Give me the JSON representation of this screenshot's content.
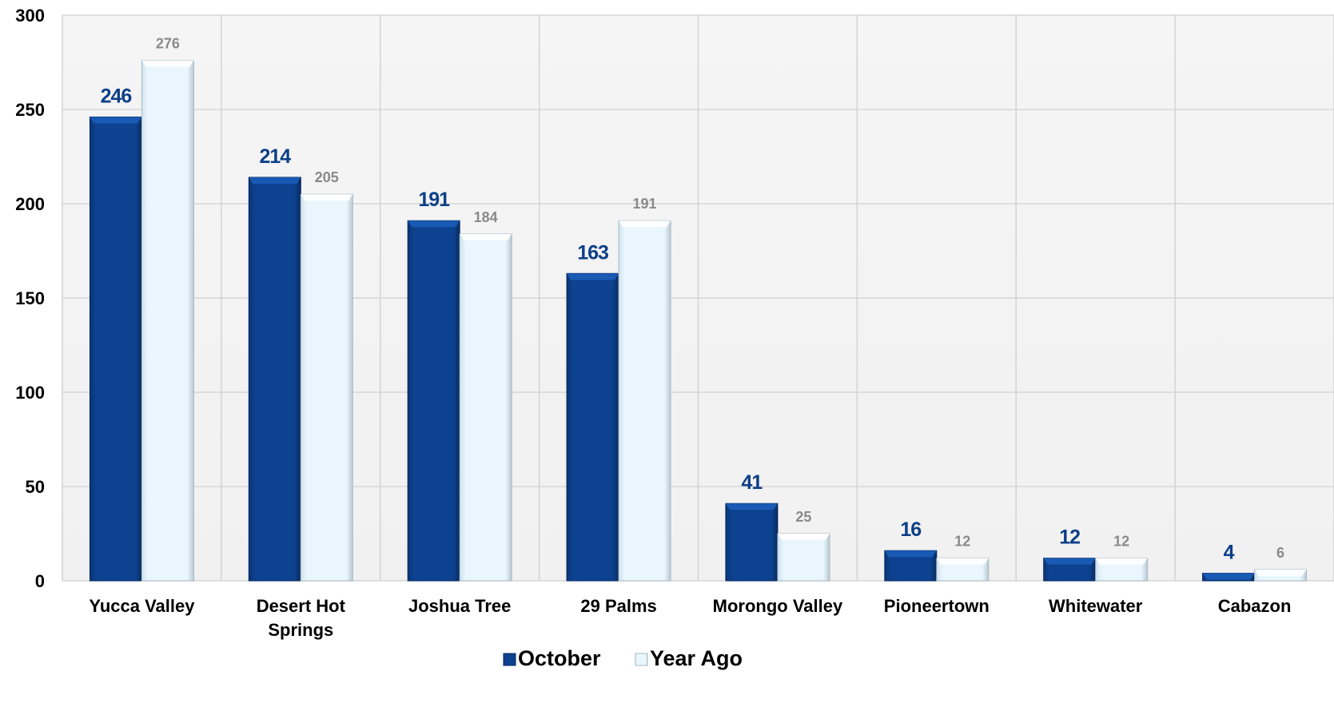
{
  "chart_data": {
    "type": "bar",
    "title": "",
    "xlabel": "",
    "ylabel": "",
    "ylim": [
      0,
      300
    ],
    "yticks": [
      0,
      50,
      100,
      150,
      200,
      250,
      300
    ],
    "grid": true,
    "legend_position": "bottom",
    "categories": [
      [
        "Yucca Valley"
      ],
      [
        "Desert Hot",
        "Springs"
      ],
      [
        "Joshua Tree"
      ],
      [
        "29 Palms"
      ],
      [
        "Morongo Valley"
      ],
      [
        "Pioneertown"
      ],
      [
        "Whitewater"
      ],
      [
        "Cabazon"
      ]
    ],
    "series": [
      {
        "name": "October",
        "values": [
          246,
          214,
          191,
          163,
          41,
          16,
          12,
          4
        ],
        "color": "#0d3f87"
      },
      {
        "name": "Year Ago",
        "values": [
          276,
          205,
          184,
          191,
          25,
          12,
          12,
          6
        ],
        "color": "#e4f3fc"
      }
    ]
  }
}
